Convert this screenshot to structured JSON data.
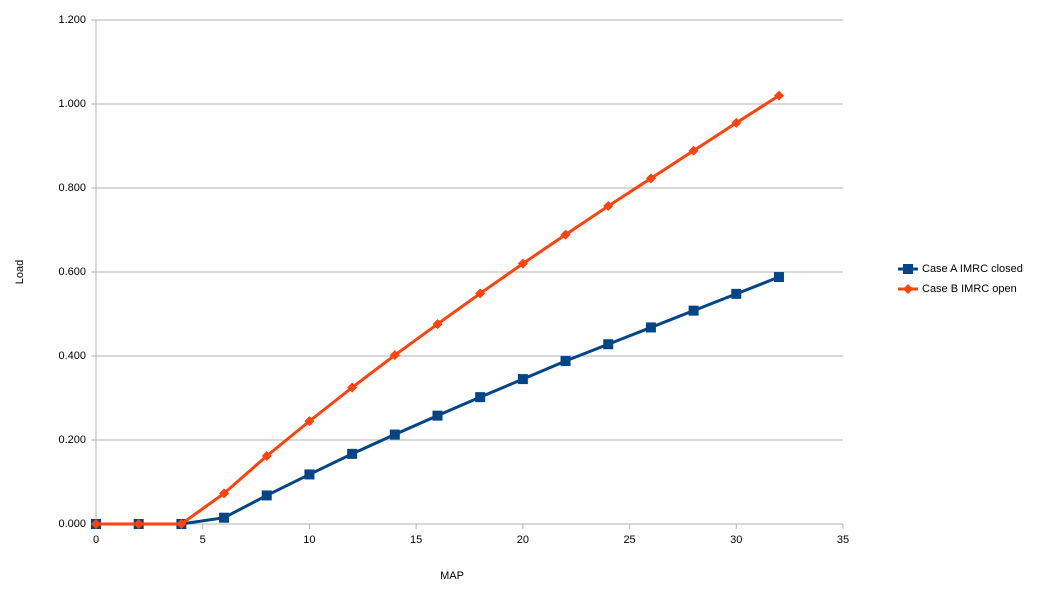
{
  "chart_data": {
    "type": "line",
    "x_label": "MAP",
    "y_label": "Load",
    "x": [
      0,
      2,
      4,
      6,
      8,
      10,
      12,
      14,
      16,
      18,
      20,
      22,
      24,
      26,
      28,
      30,
      32
    ],
    "series": [
      {
        "name": "Case A IMRC closed",
        "color": "#004586",
        "marker": "square",
        "values": [
          0,
          0,
          0,
          0.015,
          0.068,
          0.118,
          0.167,
          0.213,
          0.258,
          0.302,
          0.345,
          0.388,
          0.428,
          0.468,
          0.508,
          0.548,
          0.588
        ]
      },
      {
        "name": "Case B IMRC open",
        "color": "#ff420e",
        "marker": "diamond",
        "values": [
          0,
          0,
          0,
          0.073,
          0.162,
          0.245,
          0.325,
          0.402,
          0.476,
          0.549,
          0.62,
          0.689,
          0.757,
          0.823,
          0.889,
          0.955,
          1.02
        ]
      }
    ],
    "xlim": [
      0,
      35
    ],
    "xticks": [
      0,
      5,
      10,
      15,
      20,
      25,
      30,
      35
    ],
    "ylim": [
      0,
      1.2
    ],
    "yticks": [
      {
        "value": 0,
        "label": "0.000"
      },
      {
        "value": 0.2,
        "label": "0.200"
      },
      {
        "value": 0.4,
        "label": "0.400"
      },
      {
        "value": 0.6,
        "label": "0.600"
      },
      {
        "value": 0.8,
        "label": "0.800"
      },
      {
        "value": 1.0,
        "label": "1.000"
      },
      {
        "value": 1.2,
        "label": "1.200"
      }
    ],
    "grid": true,
    "legend": "right"
  }
}
